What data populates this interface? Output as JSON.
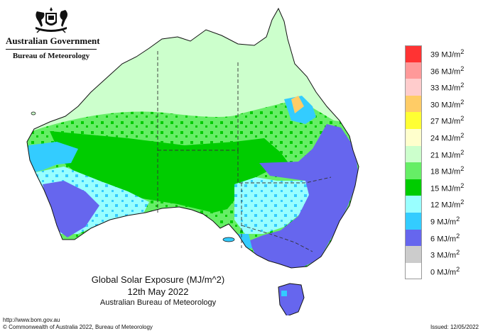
{
  "header": {
    "government": "Australian Government",
    "agency": "Bureau of Meteorology"
  },
  "map": {
    "title": "Global Solar Exposure (MJ/m^2)",
    "date": "12th May 2022",
    "source": "Australian Bureau of Meteorology"
  },
  "legend": {
    "unit_label": "MJ/m",
    "unit_power": "2",
    "items": [
      {
        "value": "39",
        "color": "#ff3333"
      },
      {
        "value": "36",
        "color": "#ff9999"
      },
      {
        "value": "33",
        "color": "#ffcccc"
      },
      {
        "value": "30",
        "color": "#ffcc66"
      },
      {
        "value": "27",
        "color": "#ffff33"
      },
      {
        "value": "24",
        "color": "#ffffcc"
      },
      {
        "value": "21",
        "color": "#ccffcc"
      },
      {
        "value": "18",
        "color": "#66ee66"
      },
      {
        "value": "15",
        "color": "#00cc00"
      },
      {
        "value": "12",
        "color": "#99ffff"
      },
      {
        "value": "9",
        "color": "#33ccff"
      },
      {
        "value": "6",
        "color": "#6666ee"
      },
      {
        "value": "3",
        "color": "#cccccc"
      },
      {
        "value": "0",
        "color": "#ffffff"
      }
    ]
  },
  "footer": {
    "url": "http://www.bom.gov.au",
    "copyright": "© Commonwealth of Australia 2022, Bureau of Meteorology",
    "issued": "Issued: 12/05/2022"
  }
}
